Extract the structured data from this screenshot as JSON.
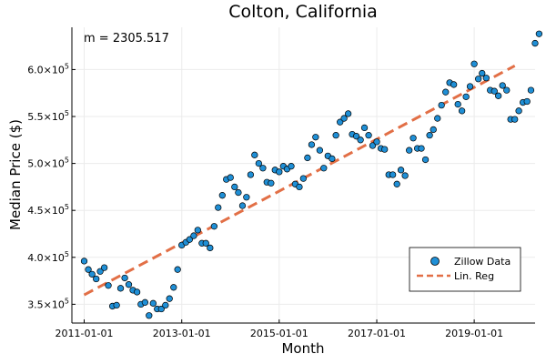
{
  "chart_data": {
    "type": "scatter",
    "title": "Colton, California",
    "xlabel": "Month",
    "ylabel": "Median Price ($)",
    "annotation": "m = 2305.517",
    "grid": true,
    "legend_position": "bottom-right",
    "colors": {
      "points": "#1f8fd6",
      "point_stroke": "#000000",
      "line": "#e26f46"
    },
    "x_ticks": [
      "2011-01-01",
      "2013-01-01",
      "2015-01-01",
      "2017-01-01",
      "2019-01-01"
    ],
    "y_ticks": [
      {
        "value": 350000,
        "mantissa": "3.5×10",
        "exp": "5"
      },
      {
        "value": 400000,
        "mantissa": "4.0×10",
        "exp": "5"
      },
      {
        "value": 450000,
        "mantissa": "4.5×10",
        "exp": "5"
      },
      {
        "value": 500000,
        "mantissa": "5.0×10",
        "exp": "5"
      },
      {
        "value": 550000,
        "mantissa": "5.5×10",
        "exp": "5"
      },
      {
        "value": 600000,
        "mantissa": "6.0×10",
        "exp": "5"
      }
    ],
    "xlim": [
      "2010-10-01",
      "2020-04-01"
    ],
    "ylim": [
      330000,
      645000
    ],
    "series": [
      {
        "name": "Zillow Data",
        "kind": "scatter",
        "start": "2011-01-01",
        "step": "month",
        "values": [
          396000,
          387000,
          382000,
          377000,
          385000,
          389000,
          370000,
          348000,
          349000,
          367000,
          378000,
          371000,
          365000,
          363000,
          350000,
          352000,
          338000,
          351000,
          345000,
          345000,
          349000,
          356000,
          368000,
          387000,
          413000,
          416000,
          419000,
          423000,
          429000,
          415000,
          415000,
          410000,
          433000,
          453000,
          466000,
          483000,
          485000,
          475000,
          469000,
          455000,
          464000,
          488000,
          509000,
          500000,
          495000,
          480000,
          479000,
          493000,
          491000,
          497000,
          494000,
          497000,
          478000,
          475000,
          484000,
          506000,
          520000,
          528000,
          514000,
          495000,
          508000,
          505000,
          530000,
          544000,
          548000,
          553000,
          531000,
          529000,
          525000,
          538000,
          530000,
          519000,
          523000,
          516000,
          515000,
          488000,
          488000,
          478000,
          493000,
          487000,
          514000,
          527000,
          516000,
          516000,
          504000,
          530000,
          536000,
          548000,
          562000,
          576000,
          586000,
          584000,
          563000,
          556000,
          571000,
          582000,
          606000,
          590000,
          596000,
          591000,
          578000,
          577000,
          572000,
          583000,
          578000,
          547000,
          547000,
          556000,
          565000,
          566000,
          578000,
          628000,
          638000
        ]
      },
      {
        "name": "Lin. Reg",
        "kind": "line",
        "dashed": true,
        "x": [
          "2011-01-01",
          "2019-11-01"
        ],
        "y": [
          360000,
          604000
        ]
      }
    ]
  }
}
